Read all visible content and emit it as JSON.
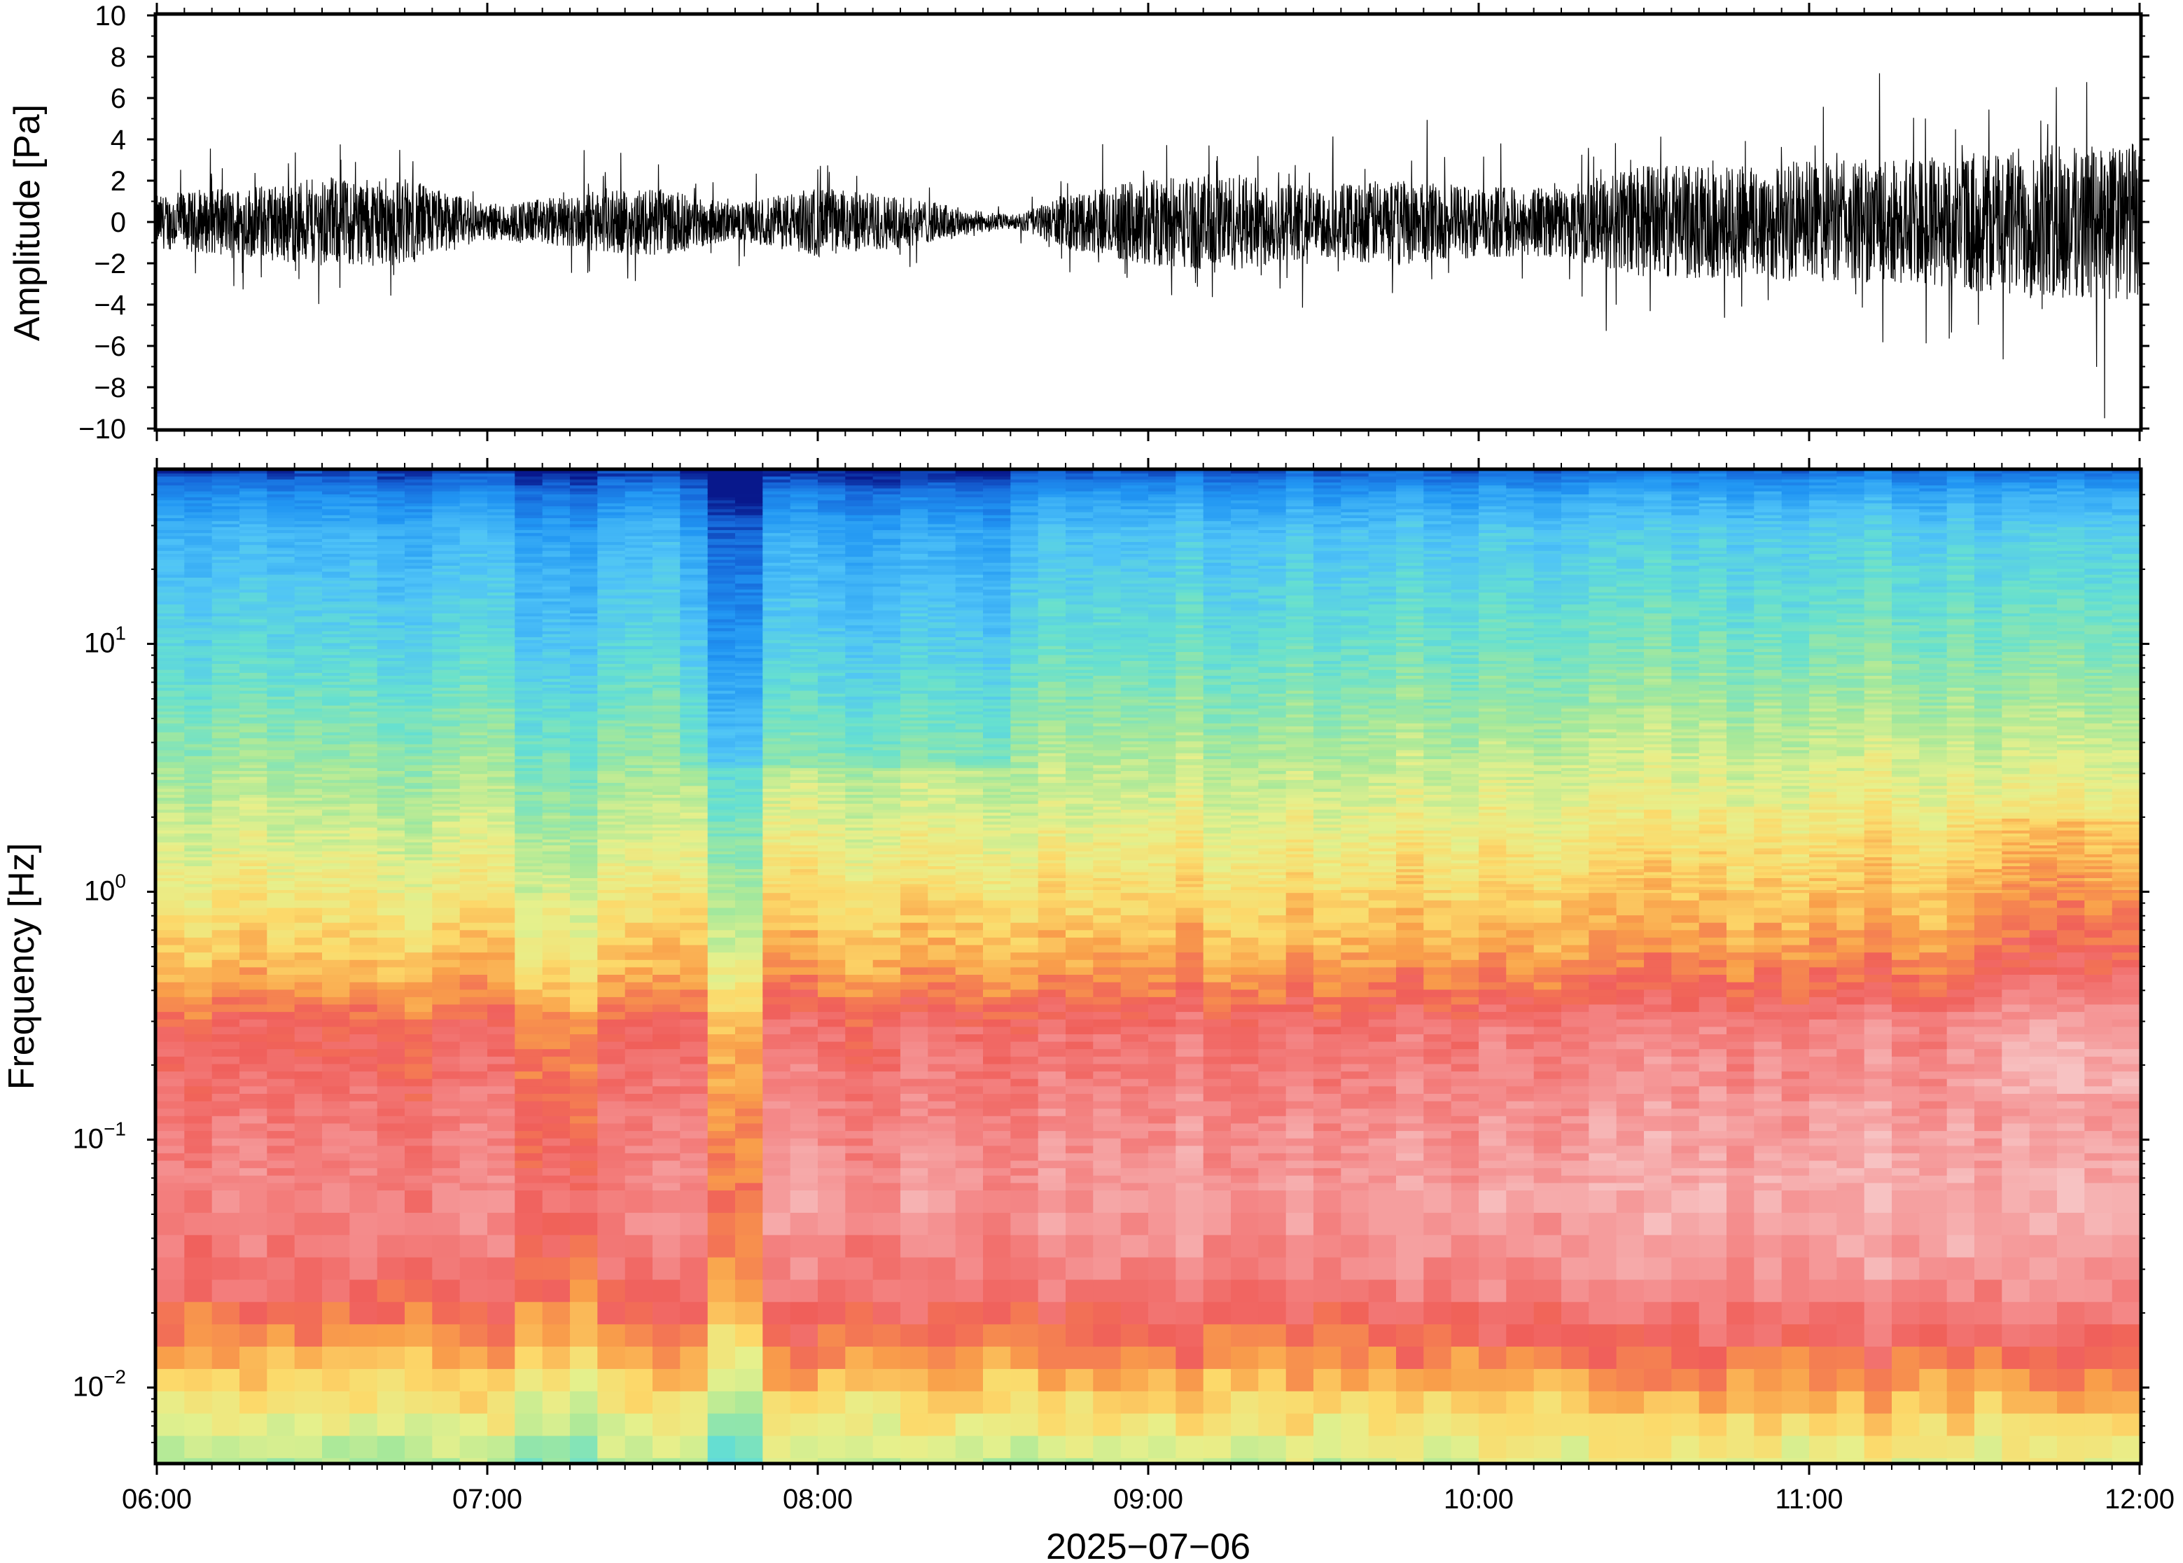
{
  "chart_data": [
    {
      "type": "line",
      "title": "",
      "ylabel": "Amplitude [Pa]",
      "ylim": [
        -10,
        10
      ],
      "yticks": [
        "10",
        "8",
        "6",
        "4",
        "2",
        "0",
        "−2",
        "−4",
        "−6",
        "−8",
        "−10"
      ],
      "ytick_values": [
        10,
        8,
        6,
        4,
        2,
        0,
        -2,
        -4,
        -6,
        -8,
        -10
      ],
      "xlim": [
        "06:00",
        "12:00"
      ],
      "series": [
        {
          "x_hours": [
            6.0,
            6.25,
            6.5,
            6.75,
            7.0,
            7.25,
            7.5,
            7.75,
            8.0,
            8.25,
            8.5,
            8.6,
            8.75,
            9.0,
            9.25,
            9.5,
            9.75,
            10.0,
            10.25,
            10.5,
            10.75,
            11.0,
            11.25,
            11.5,
            11.75,
            12.0
          ],
          "envelope_pa": [
            1.5,
            2.0,
            2.5,
            2.5,
            1.0,
            1.5,
            2.0,
            1.0,
            2.0,
            1.5,
            0.6,
            0.4,
            1.5,
            2.5,
            2.8,
            2.0,
            2.5,
            2.0,
            2.0,
            3.2,
            3.2,
            3.5,
            3.5,
            4.0,
            4.5,
            4.5
          ]
        }
      ]
    },
    {
      "type": "heatmap",
      "title": "",
      "ylabel": "Frequency [Hz]",
      "xlabel": "2025−07−06",
      "y_scale": "log",
      "ylim": [
        0.005,
        50
      ],
      "ytick_labels": [
        {
          "base": "10",
          "exp": "1",
          "value": 10
        },
        {
          "base": "10",
          "exp": "0",
          "value": 1
        },
        {
          "base": "10",
          "exp": "−1",
          "value": 0.1
        },
        {
          "base": "10",
          "exp": "−2",
          "value": 0.01
        }
      ],
      "xticks": [
        "06:00",
        "07:00",
        "08:00",
        "09:00",
        "10:00",
        "11:00",
        "12:00"
      ],
      "xlim": [
        "06:00",
        "12:00"
      ],
      "colormap": [
        "#08306b",
        "#1565d8",
        "#2196f3",
        "#4fc3f7",
        "#66e0d0",
        "#a6e89a",
        "#e6f08c",
        "#fcd96a",
        "#f9a04a",
        "#f06b5a",
        "#f48b8b",
        "#f7c2c2"
      ],
      "colormap_note": "blue = low, green/yellow = mid, red = high, pink = highest",
      "frequency_profile_hz": [
        {
          "f": 45,
          "level": "darkest blue"
        },
        {
          "f": 30,
          "level": "blue"
        },
        {
          "f": 10,
          "level": "cyan"
        },
        {
          "f": 3,
          "level": "green"
        },
        {
          "f": 1,
          "level": "yellow"
        },
        {
          "f": 0.3,
          "level": "orange-red"
        },
        {
          "f": 0.1,
          "level": "red"
        },
        {
          "f": 0.05,
          "level": "pink"
        },
        {
          "f": 0.02,
          "level": "red"
        },
        {
          "f": 0.01,
          "level": "yellow"
        },
        {
          "f": 0.006,
          "level": "green"
        }
      ]
    }
  ]
}
